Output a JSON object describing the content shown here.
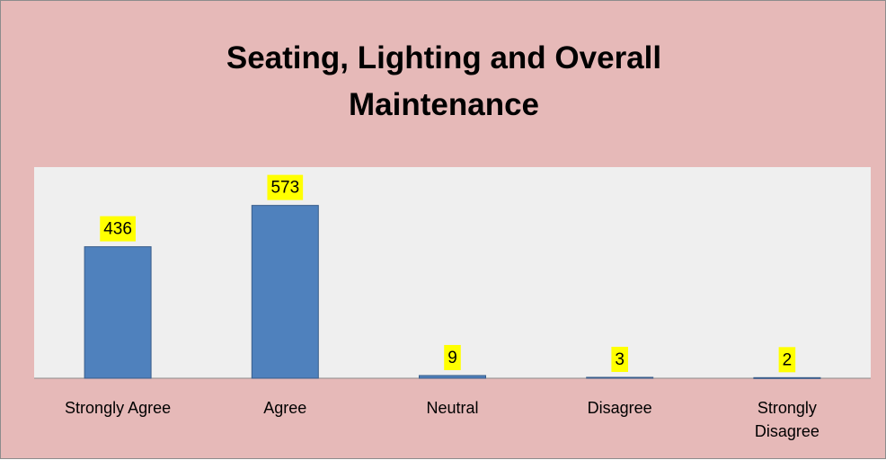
{
  "chart_data": {
    "type": "bar",
    "title": "Seating, Lighting and Overall Maintenance",
    "categories": [
      "Strongly Agree",
      "Agree",
      "Neutral",
      "Disagree",
      "Strongly Disagree"
    ],
    "values": [
      436,
      573,
      9,
      3,
      2
    ],
    "color": "#4f81bd",
    "ylim": [
      0,
      700
    ]
  }
}
